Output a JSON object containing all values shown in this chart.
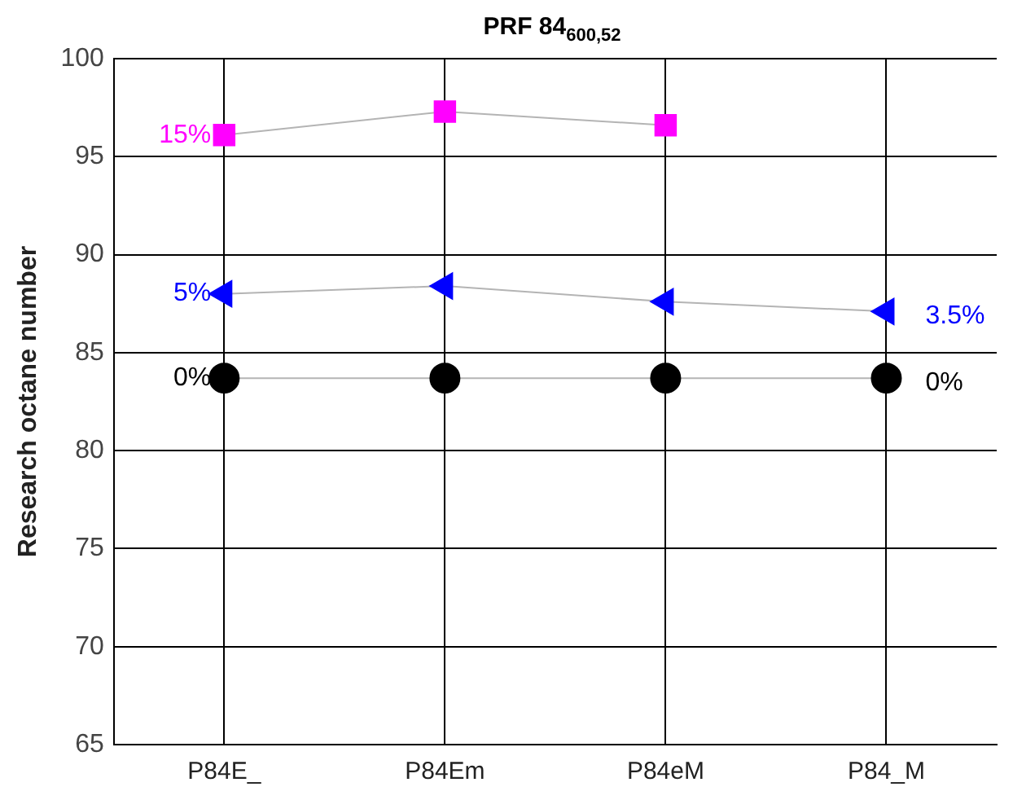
{
  "chart_data": {
    "type": "line",
    "title": "PRF 84$_{600,52}$",
    "ylabel": "Research octane number",
    "categories": [
      "P84E_",
      "P84Em",
      "P84eM",
      "P84_M"
    ],
    "series": [
      {
        "color": "#ff00ff",
        "marker": "square",
        "values": [
          96.1,
          97.3,
          96.6,
          null
        ]
      },
      {
        "color": "#0000ff",
        "marker": "triangle",
        "values": [
          88.0,
          88.4,
          87.6,
          87.1
        ]
      },
      {
        "color": "#000000",
        "marker": "circle",
        "values": [
          83.7,
          83.7,
          83.7,
          83.7
        ]
      }
    ],
    "ylim": [
      65,
      100
    ],
    "yticks": [
      65,
      70,
      75,
      80,
      85,
      90,
      95,
      100
    ],
    "grid": true,
    "legend": false,
    "annotations": [
      {
        "text": "15%",
        "x": "P84E_",
        "y": 96.1
      },
      {
        "text": "5%",
        "x": "P84E_",
        "y": 88.0
      },
      {
        "text": "0%",
        "x": "P84E_",
        "y": 83.7
      },
      {
        "text": "3.5%",
        "x": "P84_M",
        "y": 87.1
      },
      {
        "text": "0%",
        "x": "P84_M",
        "y": 83.7
      }
    ]
  }
}
